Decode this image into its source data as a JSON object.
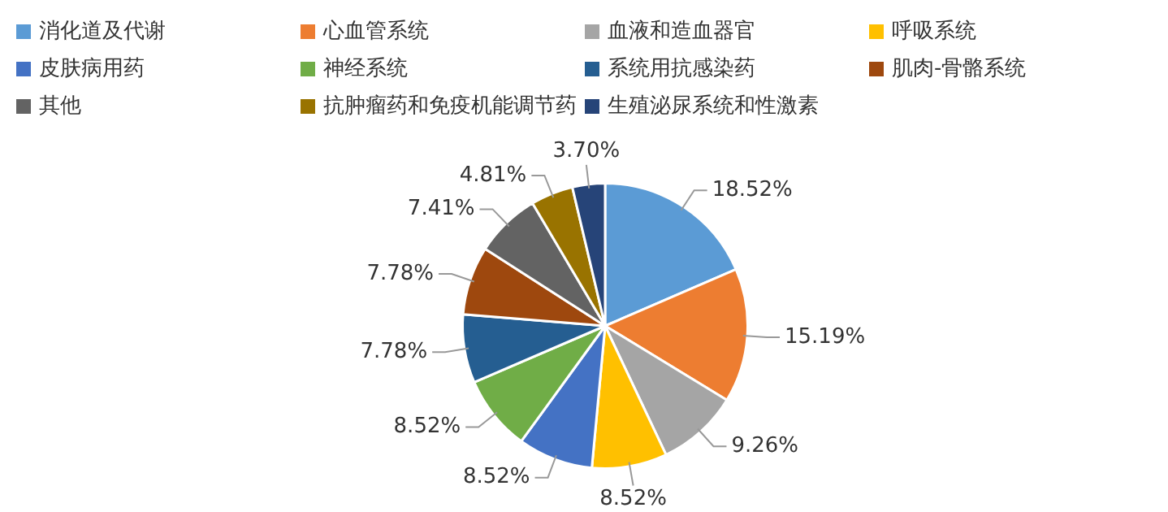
{
  "chart_data": {
    "type": "pie",
    "categories": [
      "消化道及代谢",
      "心血管系统",
      "血液和造血器官",
      "呼吸系统",
      "皮肤病用药",
      "神经系统",
      "系统用抗感染药",
      "肌肉-骨骼系统",
      "其他",
      "抗肿瘤药和免疫机能调节药",
      "生殖泌尿系统和性激素"
    ],
    "values": [
      18.52,
      15.19,
      9.26,
      8.52,
      8.52,
      8.52,
      7.78,
      7.78,
      7.41,
      4.81,
      3.7
    ],
    "colors": [
      "#5b9bd5",
      "#ed7d31",
      "#a5a5a5",
      "#ffc000",
      "#4472c4",
      "#70ad47",
      "#255e91",
      "#9e480e",
      "#636363",
      "#997300",
      "#264478"
    ],
    "value_labels": [
      "18.52%",
      "15.19%",
      "9.26%",
      "8.52%",
      "8.52%",
      "8.52%",
      "7.78%",
      "7.78%",
      "7.41%",
      "4.81%",
      "3.70%"
    ],
    "legend": "top"
  }
}
